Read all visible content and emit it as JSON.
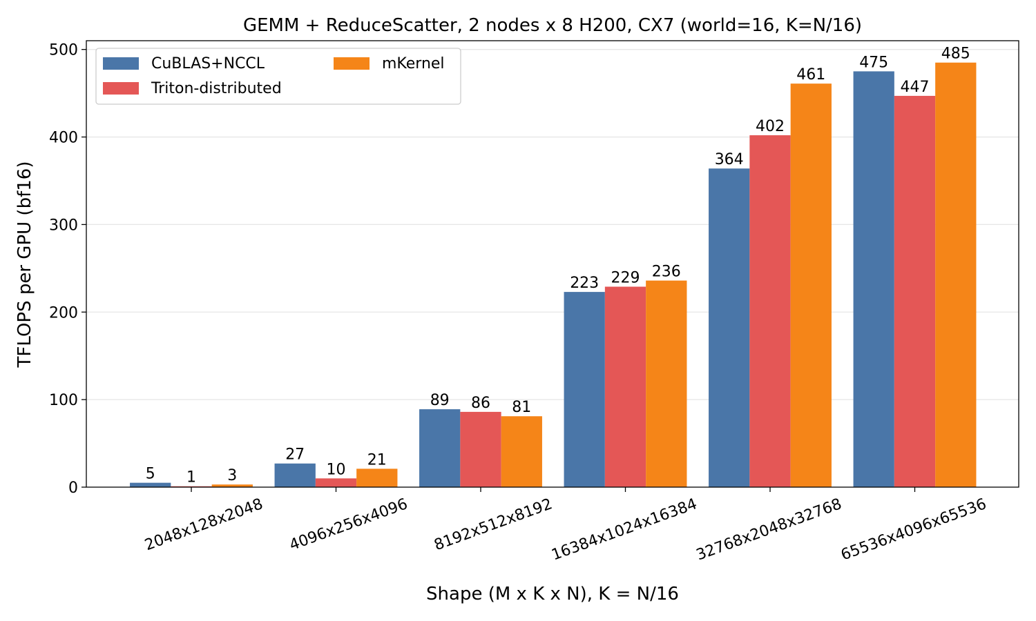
{
  "chart_data": {
    "type": "bar",
    "title": "GEMM + ReduceScatter, 2 nodes x 8 H200, CX7 (world=16, K=N/16)",
    "xlabel": "Shape (M x K x N), K = N/16",
    "ylabel": "TFLOPS per GPU (bf16)",
    "ylim": [
      0,
      510
    ],
    "yticks": [
      0,
      100,
      200,
      300,
      400,
      500
    ],
    "grid": "horizontal",
    "legend_position": "top-left",
    "legend_columns": 2,
    "categories": [
      "2048x128x2048",
      "4096x256x4096",
      "8192x512x8192",
      "16384x1024x16384",
      "32768x2048x32768",
      "65536x4096x65536"
    ],
    "series": [
      {
        "name": "CuBLAS+NCCL",
        "color": "#4a76a8",
        "values": [
          5,
          27,
          89,
          223,
          364,
          475
        ],
        "labels": [
          "5",
          "27",
          "89",
          "223",
          "364",
          "475"
        ]
      },
      {
        "name": "Triton-distributed",
        "color": "#e45756",
        "values": [
          1,
          10,
          86,
          229,
          402,
          447
        ],
        "labels": [
          "1",
          "10",
          "86",
          "229",
          "402",
          "447"
        ]
      },
      {
        "name": "mKernel",
        "color": "#f58518",
        "values": [
          3,
          21,
          81,
          236,
          461,
          485
        ],
        "labels": [
          "3",
          "21",
          "81",
          "236",
          "461",
          "485"
        ]
      }
    ]
  }
}
